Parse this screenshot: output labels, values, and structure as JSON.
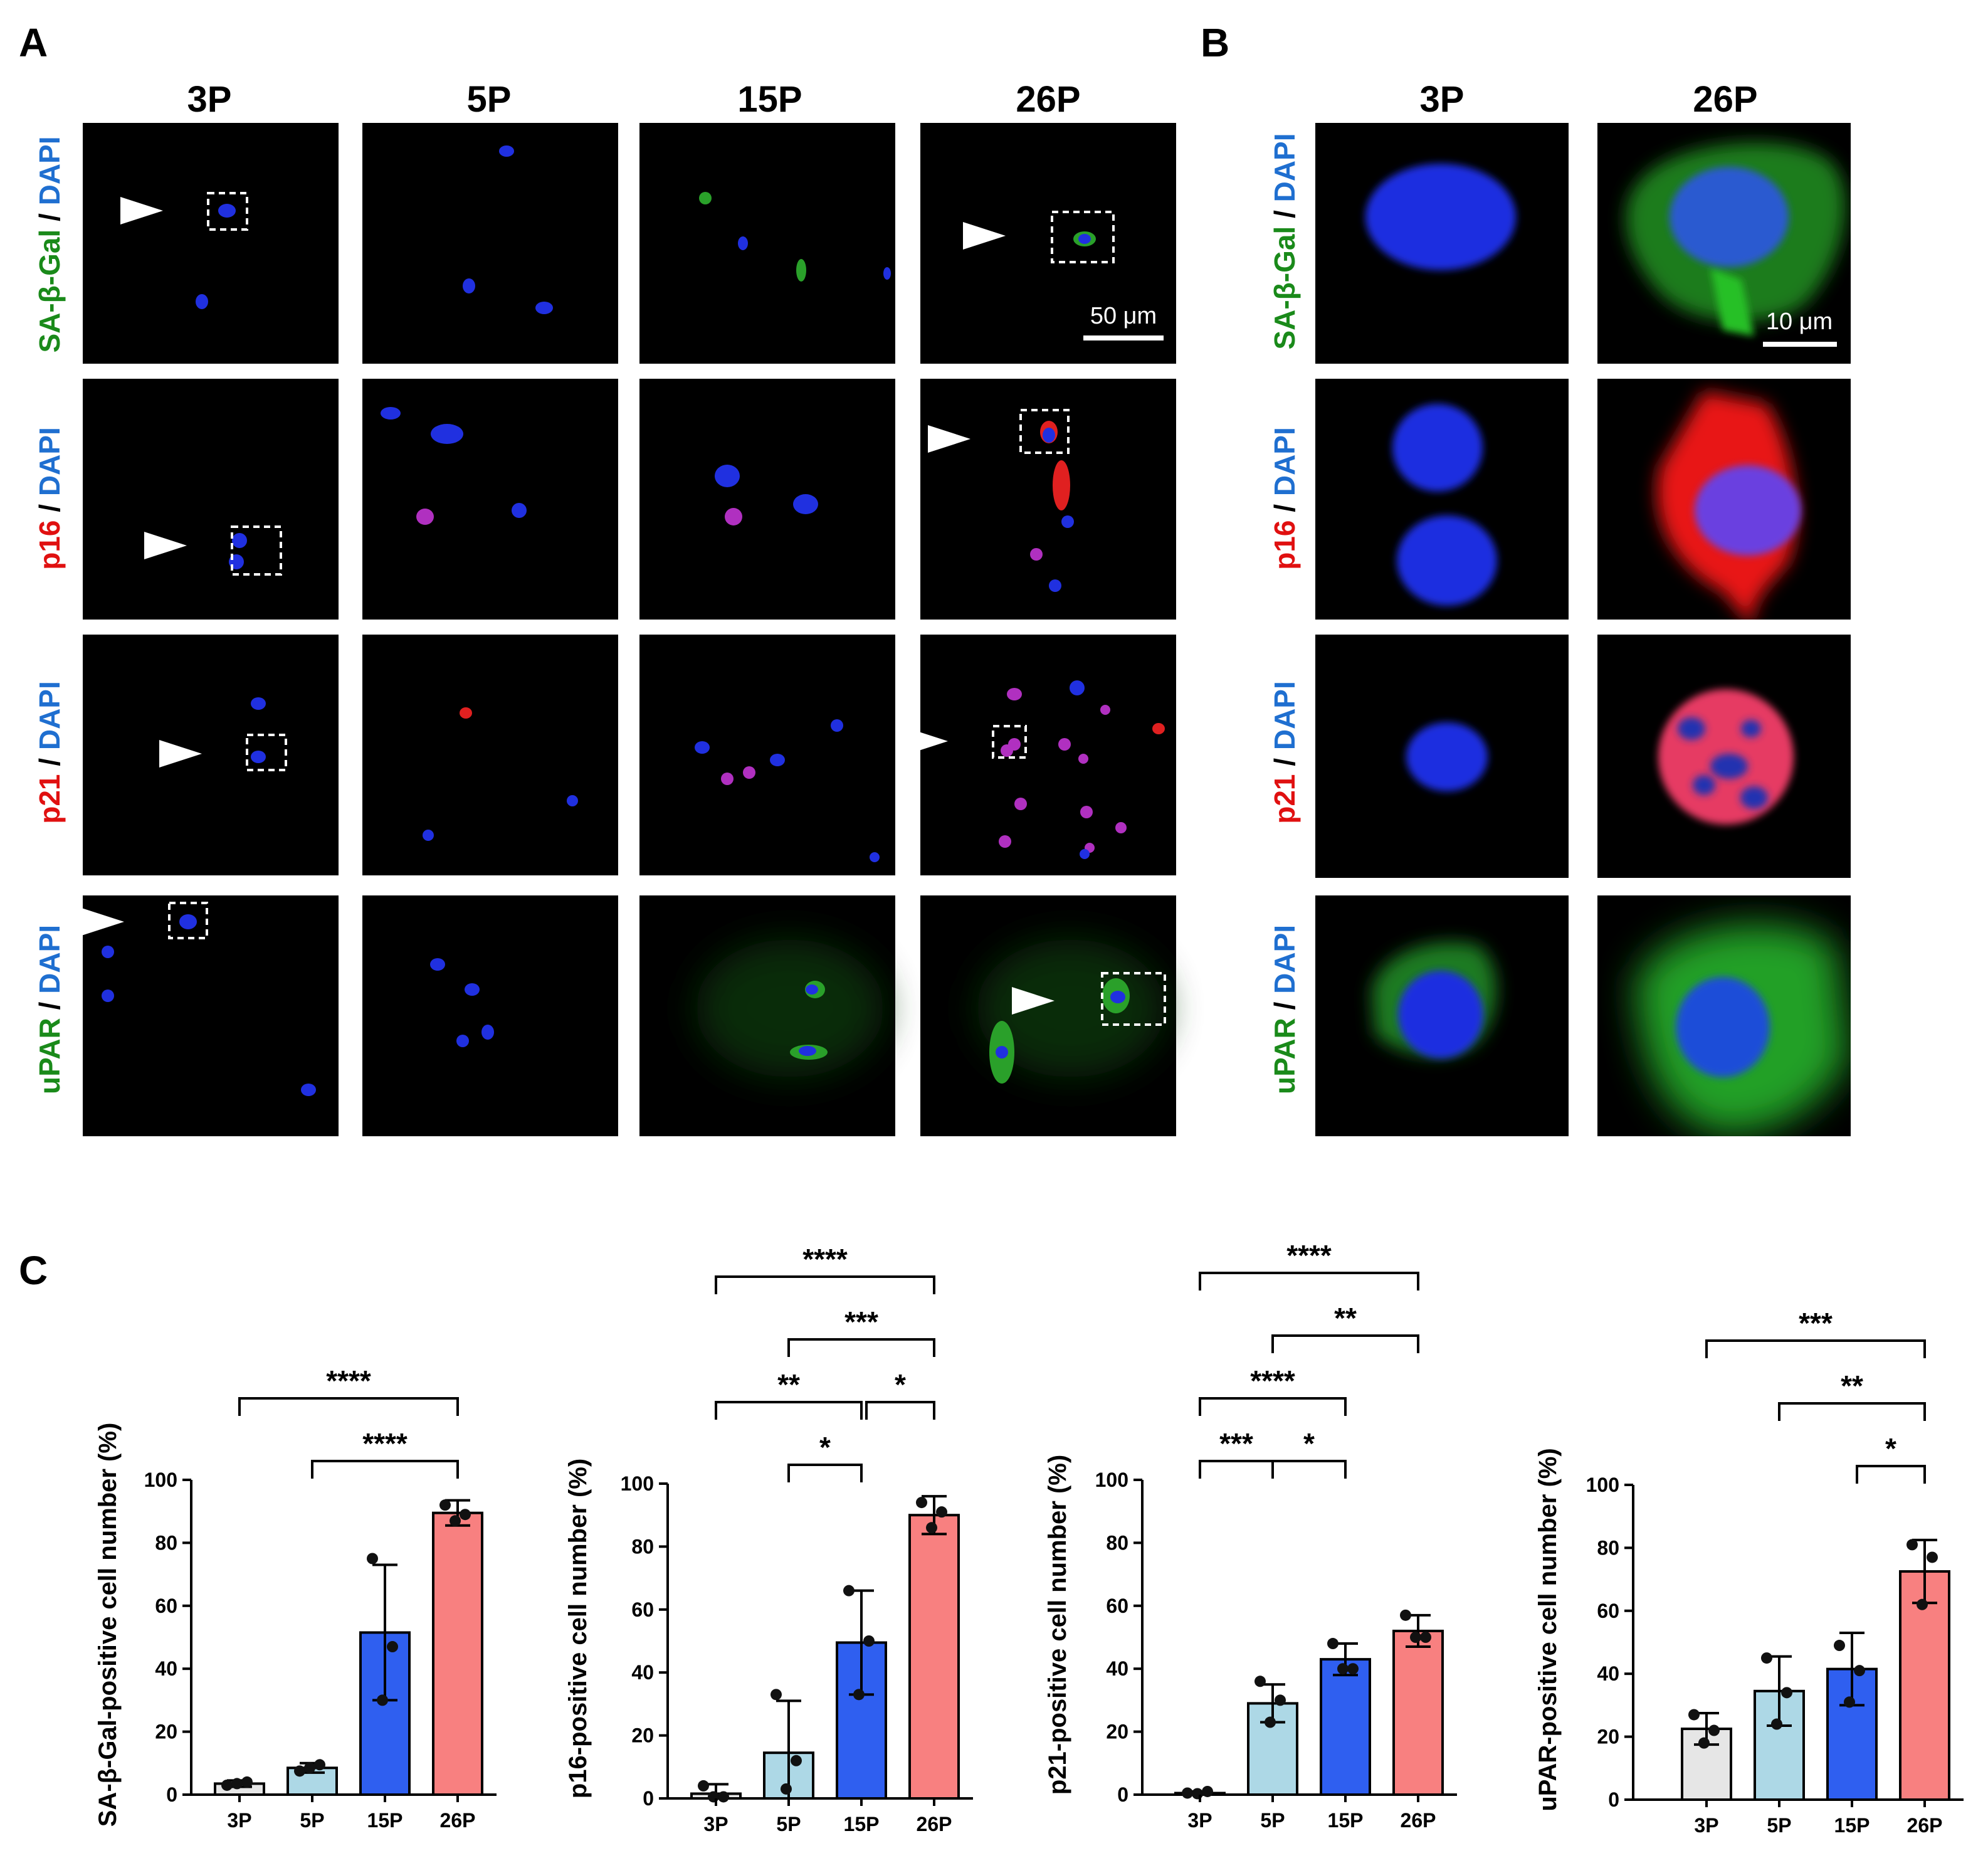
{
  "panels": {
    "a": "A",
    "b": "B",
    "c": "C"
  },
  "panel_a": {
    "columns": [
      "3P",
      "5P",
      "15P",
      "26P"
    ],
    "rows": [
      {
        "marker": "SA-β-Gal",
        "sep": " / ",
        "dapi": "DAPI",
        "color": "#1a8a1a"
      },
      {
        "marker": "p16",
        "sep": " / ",
        "dapi": "DAPI",
        "color": "#e01010"
      },
      {
        "marker": "p21",
        "sep": " / ",
        "dapi": "DAPI",
        "color": "#e01010"
      },
      {
        "marker": "uPAR",
        "sep": " / ",
        "dapi": "DAPI",
        "color": "#1a8a1a"
      }
    ],
    "scale_bar": "50 μm"
  },
  "panel_b": {
    "columns": [
      "3P",
      "26P"
    ],
    "scale_bar": "10 μm"
  },
  "colors": {
    "dapi": "#1f6fd0",
    "p3": "#e6e6e6",
    "p5": "#add8e6",
    "p15": "#2f5ff0",
    "p26": "#f88080"
  },
  "chart_data": [
    {
      "type": "bar",
      "categories": [
        "3P",
        "5P",
        "15P",
        "26P"
      ],
      "values": [
        3.5,
        8.5,
        51.5,
        89.5
      ],
      "error": [
        1,
        1.5,
        21.5,
        4
      ],
      "points": [
        [
          3,
          4,
          3.5
        ],
        [
          7.5,
          9.5,
          8.5
        ],
        [
          75,
          47,
          30
        ],
        [
          92,
          89,
          87
        ]
      ],
      "ylabel": "SA-β-Gal-positive cell number (%)",
      "ylim": [
        0,
        100
      ],
      "yticks": [
        0,
        20,
        40,
        60,
        80,
        100
      ],
      "comparisons": [
        {
          "from": "3P",
          "to": "26P",
          "label": "****",
          "level": 1
        },
        {
          "from": "5P",
          "to": "26P",
          "label": "****",
          "level": 0
        }
      ]
    },
    {
      "type": "bar",
      "categories": [
        "3P",
        "5P",
        "15P",
        "26P"
      ],
      "values": [
        1.5,
        14.5,
        49.5,
        90
      ],
      "error": [
        3,
        16.5,
        16.5,
        6
      ],
      "points": [
        [
          4,
          0.5,
          0.5
        ],
        [
          33,
          12,
          3
        ],
        [
          66,
          50,
          33
        ],
        [
          94,
          91,
          86
        ]
      ],
      "ylabel": "p16-positive cell number (%)",
      "ylim": [
        0,
        100
      ],
      "yticks": [
        0,
        20,
        40,
        60,
        80,
        100
      ],
      "comparisons": [
        {
          "from": "3P",
          "to": "26P",
          "label": "****",
          "level": 3
        },
        {
          "from": "5P",
          "to": "26P",
          "label": "***",
          "level": 2
        },
        {
          "from": "3P",
          "to": "15P",
          "label": "**",
          "level": 1
        },
        {
          "from": "15P",
          "to": "26P",
          "label": "*",
          "level": 1
        },
        {
          "from": "5P",
          "to": "15P",
          "label": "*",
          "level": 0
        }
      ]
    },
    {
      "type": "bar",
      "categories": [
        "3P",
        "5P",
        "15P",
        "26P"
      ],
      "values": [
        0.5,
        29,
        43,
        52
      ],
      "error": [
        0.5,
        6,
        5,
        5
      ],
      "points": [
        [
          0.5,
          1,
          0.3
        ],
        [
          36,
          30,
          23
        ],
        [
          48,
          40,
          40
        ],
        [
          57,
          50,
          50
        ]
      ],
      "ylabel": "p21-positive cell number (%)",
      "ylim": [
        0,
        100
      ],
      "yticks": [
        0,
        20,
        40,
        60,
        80,
        100
      ],
      "comparisons": [
        {
          "from": "3P",
          "to": "26P",
          "label": "****",
          "level": 3
        },
        {
          "from": "5P",
          "to": "26P",
          "label": "**",
          "level": 2
        },
        {
          "from": "3P",
          "to": "15P",
          "label": "****",
          "level": 1
        },
        {
          "from": "3P",
          "to": "5P",
          "label": "***",
          "level": 0
        },
        {
          "from": "5P",
          "to": "15P",
          "label": "*",
          "level": 0
        }
      ]
    },
    {
      "type": "bar",
      "categories": [
        "3P",
        "5P",
        "15P",
        "26P"
      ],
      "values": [
        22.5,
        34.5,
        41.5,
        72.5
      ],
      "error": [
        5,
        11,
        11.5,
        10
      ],
      "points": [
        [
          27,
          22,
          18
        ],
        [
          45,
          34,
          24
        ],
        [
          49,
          41,
          31
        ],
        [
          81,
          77,
          62
        ]
      ],
      "ylabel": "uPAR-positive cell number (%)",
      "ylim": [
        0,
        100
      ],
      "yticks": [
        0,
        20,
        40,
        60,
        80,
        100
      ],
      "comparisons": [
        {
          "from": "3P",
          "to": "26P",
          "label": "***",
          "level": 2
        },
        {
          "from": "5P",
          "to": "26P",
          "label": "**",
          "level": 1
        },
        {
          "from": "15P",
          "to": "26P",
          "label": "*",
          "level": 0
        }
      ]
    }
  ]
}
